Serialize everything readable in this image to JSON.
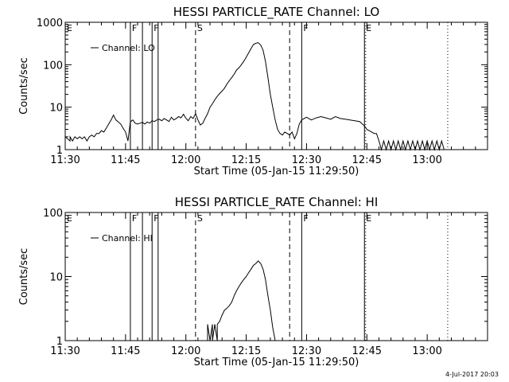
{
  "footer_stamp": "4-Jul-2017 20:03",
  "chart_data": [
    {
      "type": "line",
      "title": "HESSI PARTICLE_RATE Channel: LO",
      "xlabel": "Start Time (05-Jan-15 11:29:50)",
      "ylabel": "Counts/sec",
      "yscale": "log",
      "ylim": [
        1,
        1000
      ],
      "xlim_minutes": [
        11.5,
        13.25
      ],
      "x_unit": "time (hh:mm)",
      "x_ticks": [
        {
          "t": 11.5,
          "label": "11:30"
        },
        {
          "t": 11.75,
          "label": "11:45"
        },
        {
          "t": 12.0,
          "label": "12:00"
        },
        {
          "t": 12.25,
          "label": "12:15"
        },
        {
          "t": 12.5,
          "label": "12:30"
        },
        {
          "t": 12.75,
          "label": "12:45"
        },
        {
          "t": 13.0,
          "label": "13:00"
        }
      ],
      "y_ticks": [
        {
          "v": 1,
          "label": "1"
        },
        {
          "v": 10,
          "label": "10"
        },
        {
          "v": 100,
          "label": "100"
        },
        {
          "v": 1000,
          "label": "1000"
        }
      ],
      "legend": "Channel: LO",
      "markers": [
        {
          "t": 11.5,
          "style": "none",
          "label": "E"
        },
        {
          "t": 11.77,
          "style": "solid",
          "label": "F"
        },
        {
          "t": 11.82,
          "style": "solid",
          "label": ""
        },
        {
          "t": 11.86,
          "style": "solid",
          "label": "F"
        },
        {
          "t": 11.885,
          "style": "solid",
          "label": ""
        },
        {
          "t": 12.04,
          "style": "dashed",
          "label": "S"
        },
        {
          "t": 12.43,
          "style": "dashed",
          "label": ""
        },
        {
          "t": 12.48,
          "style": "solid",
          "label": "F"
        },
        {
          "t": 12.74,
          "style": "solid",
          "label": "E"
        },
        {
          "t": 12.745,
          "style": "dotted",
          "label": ""
        },
        {
          "t": 13.085,
          "style": "dotted",
          "label": ""
        }
      ],
      "series": [
        {
          "x": [
            11.5,
            11.52,
            11.52,
            11.53,
            11.54,
            11.55,
            11.56,
            11.57,
            11.58,
            11.59,
            11.6,
            11.61,
            11.62,
            11.63,
            11.64,
            11.65,
            11.66,
            11.67,
            11.68,
            11.69,
            11.7,
            11.71,
            11.72,
            11.73,
            11.74,
            11.75,
            11.76,
            11.77,
            11.78,
            11.79,
            11.8,
            11.81,
            11.82,
            11.83,
            11.84,
            11.85,
            11.86,
            11.87,
            11.88,
            11.89,
            11.9,
            11.91,
            11.92,
            11.93,
            11.94,
            11.95,
            11.96,
            11.97,
            11.98,
            11.99,
            12.0,
            12.01,
            12.02,
            12.03,
            12.04,
            12.05,
            12.06,
            12.07,
            12.08,
            12.09,
            12.1,
            12.11,
            12.12,
            12.13,
            12.14,
            12.15,
            12.16,
            12.17,
            12.18,
            12.19,
            12.2,
            12.21,
            12.22,
            12.23,
            12.24,
            12.25,
            12.26,
            12.27,
            12.28,
            12.29,
            12.3,
            12.31,
            12.32,
            12.33,
            12.34,
            12.35,
            12.36,
            12.37,
            12.38,
            12.39,
            12.4,
            12.41,
            12.42,
            12.43,
            12.44,
            12.45,
            12.46,
            12.47,
            12.48,
            12.49,
            12.5,
            12.52,
            12.54,
            12.56,
            12.58,
            12.6,
            12.62,
            12.64,
            12.66,
            12.68,
            12.7,
            12.72,
            12.74,
            12.75,
            12.76,
            12.77,
            12.78,
            12.79,
            12.8,
            12.81,
            12.82,
            12.83,
            12.84,
            12.85,
            12.86,
            12.87,
            12.88,
            12.89,
            12.9,
            12.91,
            12.92,
            12.93,
            12.94,
            12.95,
            12.96,
            12.97,
            12.98,
            12.99,
            13.0,
            13.01,
            13.02,
            13.03,
            13.04,
            13.05,
            13.06,
            13.07
          ],
          "y": [
            2,
            1.6,
            2,
            1.6,
            2,
            1.8,
            2,
            1.8,
            2,
            1.6,
            2,
            2.2,
            2,
            2.4,
            2.4,
            2.8,
            2.6,
            3.2,
            4,
            5,
            6.5,
            5,
            4.5,
            4,
            3.2,
            2.6,
            1.6,
            4.5,
            5,
            4.2,
            4,
            4.2,
            4.4,
            4,
            4.5,
            4.2,
            4.8,
            4.6,
            5,
            5.2,
            4.8,
            5.4,
            5,
            4.6,
            5.8,
            5,
            5.4,
            6,
            5.6,
            6.8,
            5.5,
            4.8,
            6,
            5.4,
            7,
            5,
            3.8,
            4.2,
            5.5,
            7,
            10,
            12,
            15,
            18,
            21,
            24,
            28,
            35,
            42,
            50,
            60,
            75,
            85,
            100,
            120,
            150,
            190,
            240,
            300,
            320,
            330,
            290,
            220,
            120,
            50,
            20,
            10,
            5,
            3,
            2.4,
            2.2,
            2.6,
            2.4,
            2.2,
            2.6,
            1.8,
            2.4,
            4,
            5,
            5.4,
            5.8,
            5,
            5.6,
            6,
            5.6,
            5.2,
            6,
            5.4,
            5.2,
            5,
            4.8,
            4.6,
            3.6,
            3,
            2.8,
            2.6,
            2.4,
            2.4,
            1.6,
            1,
            1.6,
            1,
            1.6,
            1,
            1.6,
            1,
            1.6,
            1,
            1.6,
            1,
            1.6,
            1,
            1.6,
            1,
            1.6,
            1,
            1.6,
            1,
            1.6,
            1,
            1.6,
            1,
            1.6,
            1,
            1.6,
            1
          ]
        }
      ]
    },
    {
      "type": "line",
      "title": "HESSI PARTICLE_RATE Channel: HI",
      "xlabel": "Start Time (05-Jan-15 11:29:50)",
      "ylabel": "Counts/sec",
      "yscale": "log",
      "ylim": [
        1,
        100
      ],
      "xlim_minutes": [
        11.5,
        13.25
      ],
      "x_unit": "time (hh:mm)",
      "x_ticks": [
        {
          "t": 11.5,
          "label": "11:30"
        },
        {
          "t": 11.75,
          "label": "11:45"
        },
        {
          "t": 12.0,
          "label": "12:00"
        },
        {
          "t": 12.25,
          "label": "12:15"
        },
        {
          "t": 12.5,
          "label": "12:30"
        },
        {
          "t": 12.75,
          "label": "12:45"
        },
        {
          "t": 13.0,
          "label": "13:00"
        }
      ],
      "y_ticks": [
        {
          "v": 1,
          "label": "1"
        },
        {
          "v": 10,
          "label": "10"
        },
        {
          "v": 100,
          "label": "100"
        }
      ],
      "legend": "Channel: HI",
      "markers": [
        {
          "t": 11.5,
          "style": "none",
          "label": "E"
        },
        {
          "t": 11.77,
          "style": "solid",
          "label": "F"
        },
        {
          "t": 11.82,
          "style": "solid",
          "label": ""
        },
        {
          "t": 11.86,
          "style": "solid",
          "label": "F"
        },
        {
          "t": 11.885,
          "style": "solid",
          "label": ""
        },
        {
          "t": 12.04,
          "style": "dashed",
          "label": "S"
        },
        {
          "t": 12.43,
          "style": "dashed",
          "label": ""
        },
        {
          "t": 12.48,
          "style": "solid",
          "label": "F"
        },
        {
          "t": 12.74,
          "style": "solid",
          "label": "E"
        },
        {
          "t": 12.745,
          "style": "dotted",
          "label": ""
        },
        {
          "t": 13.085,
          "style": "dotted",
          "label": ""
        }
      ],
      "series": [
        {
          "x": [
            12.08,
            12.09,
            12.09,
            12.1,
            12.11,
            12.11,
            12.12,
            12.13,
            12.13,
            12.14,
            12.15,
            12.16,
            12.17,
            12.18,
            12.19,
            12.2,
            12.21,
            12.22,
            12.23,
            12.24,
            12.25,
            12.26,
            12.27,
            12.28,
            12.29,
            12.3,
            12.31,
            12.32,
            12.33,
            12.34,
            12.35,
            12.36,
            12.37
          ],
          "y": [
            1,
            1,
            1.8,
            1,
            1.8,
            1,
            1.8,
            1,
            1.8,
            2,
            2.5,
            3,
            3.2,
            3.5,
            4,
            5,
            6,
            7,
            8,
            9,
            10,
            11.5,
            13,
            15,
            16,
            17.5,
            16,
            13,
            9,
            5,
            3,
            1.6,
            1
          ]
        }
      ]
    }
  ]
}
